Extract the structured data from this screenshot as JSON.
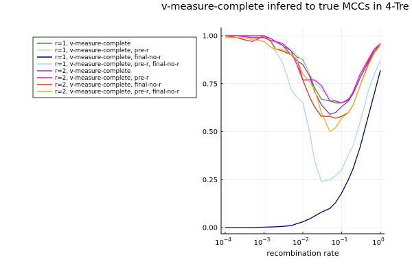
{
  "chart_data": {
    "type": "line",
    "title": "v-measure-complete infered to true MCCs in 4-Tre",
    "xlabel": "recombination rate",
    "ylabel": "",
    "xscale": "log10",
    "xlim": [
      0.0001,
      1
    ],
    "ylim": [
      0,
      1
    ],
    "xticks": [
      {
        "base": "10",
        "exp": "−4"
      },
      {
        "base": "10",
        "exp": "−3"
      },
      {
        "base": "10",
        "exp": "−2"
      },
      {
        "base": "10",
        "exp": "−1"
      },
      {
        "base": "10",
        "exp": "0"
      }
    ],
    "yticks": [
      "0.00",
      "0.25",
      "0.50",
      "0.75",
      "1.00"
    ],
    "grid": true,
    "legend_position": "top-left, outside plot area",
    "x": [
      0.0001,
      0.0002,
      0.0003,
      0.0005,
      0.001,
      0.0015,
      0.002,
      0.003,
      0.005,
      0.007,
      0.01,
      0.015,
      0.02,
      0.03,
      0.05,
      0.07,
      0.1,
      0.15,
      0.2,
      0.3,
      0.5,
      0.7,
      1.0
    ],
    "series": [
      {
        "name": "r=1, v-measure-complete",
        "color": "#3a9a3a",
        "values": [
          1.0,
          1.0,
          1.0,
          1.0,
          1.0,
          0.985,
          0.97,
          0.95,
          0.92,
          0.89,
          0.875,
          0.8,
          0.73,
          0.67,
          0.66,
          0.65,
          0.65,
          0.67,
          0.7,
          0.79,
          0.88,
          0.93,
          0.95
        ]
      },
      {
        "name": "r=1, v-measure-complete, pre-r",
        "color": "#b9e6b0",
        "values": [
          1.0,
          1.0,
          1.0,
          1.0,
          0.99,
          0.975,
          0.96,
          0.95,
          0.93,
          0.9,
          0.87,
          0.8,
          0.76,
          0.72,
          0.68,
          0.66,
          0.65,
          0.66,
          0.7,
          0.79,
          0.87,
          0.92,
          0.95
        ]
      },
      {
        "name": "r=1, v-measure-complete, final-no-r",
        "color": "#00007a",
        "values": [
          0.0,
          0.0,
          0.0,
          0.0,
          0.002,
          0.003,
          0.004,
          0.006,
          0.01,
          0.02,
          0.03,
          0.045,
          0.06,
          0.08,
          0.1,
          0.13,
          0.18,
          0.25,
          0.31,
          0.42,
          0.59,
          0.7,
          0.82
        ]
      },
      {
        "name": "r=1, v-measure-complete, pre-r, final-no-r",
        "color": "#a9d8ec",
        "values": [
          1.0,
          1.0,
          1.0,
          0.99,
          0.97,
          0.94,
          0.92,
          0.86,
          0.72,
          0.68,
          0.65,
          0.5,
          0.35,
          0.24,
          0.25,
          0.27,
          0.3,
          0.38,
          0.43,
          0.55,
          0.72,
          0.8,
          0.87
        ]
      },
      {
        "name": "r=2, v-measure-complete",
        "color": "#9b30b0",
        "values": [
          1.0,
          1.0,
          1.0,
          1.0,
          1.0,
          0.985,
          0.97,
          0.95,
          0.9,
          0.87,
          0.85,
          0.79,
          0.71,
          0.64,
          0.59,
          0.6,
          0.63,
          0.66,
          0.7,
          0.78,
          0.87,
          0.92,
          0.95
        ]
      },
      {
        "name": "r=2, v-measure-complete, pre-r",
        "color": "#ff00ff",
        "values": [
          1.0,
          1.0,
          0.995,
          0.99,
          0.99,
          0.975,
          0.97,
          0.96,
          0.92,
          0.85,
          0.77,
          0.77,
          0.77,
          0.74,
          0.66,
          0.66,
          0.65,
          0.665,
          0.71,
          0.8,
          0.88,
          0.93,
          0.96
        ]
      },
      {
        "name": "r=2, v-measure-complete, final-no-r",
        "color": "#e8331a",
        "values": [
          1.0,
          0.99,
          0.98,
          0.97,
          1.0,
          0.97,
          0.93,
          0.92,
          0.9,
          0.88,
          0.77,
          0.68,
          0.63,
          0.58,
          0.58,
          0.57,
          0.58,
          0.6,
          0.64,
          0.74,
          0.86,
          0.91,
          0.95
        ]
      },
      {
        "name": "r=2, v-measure-complete, pre-r, final-no-r",
        "color": "#f2b10c",
        "values": [
          0.99,
          0.99,
          0.99,
          0.98,
          0.97,
          0.94,
          0.93,
          0.93,
          0.9,
          0.88,
          0.8,
          0.76,
          0.72,
          0.6,
          0.5,
          0.52,
          0.57,
          0.6,
          0.64,
          0.74,
          0.85,
          0.91,
          0.95
        ]
      }
    ]
  }
}
